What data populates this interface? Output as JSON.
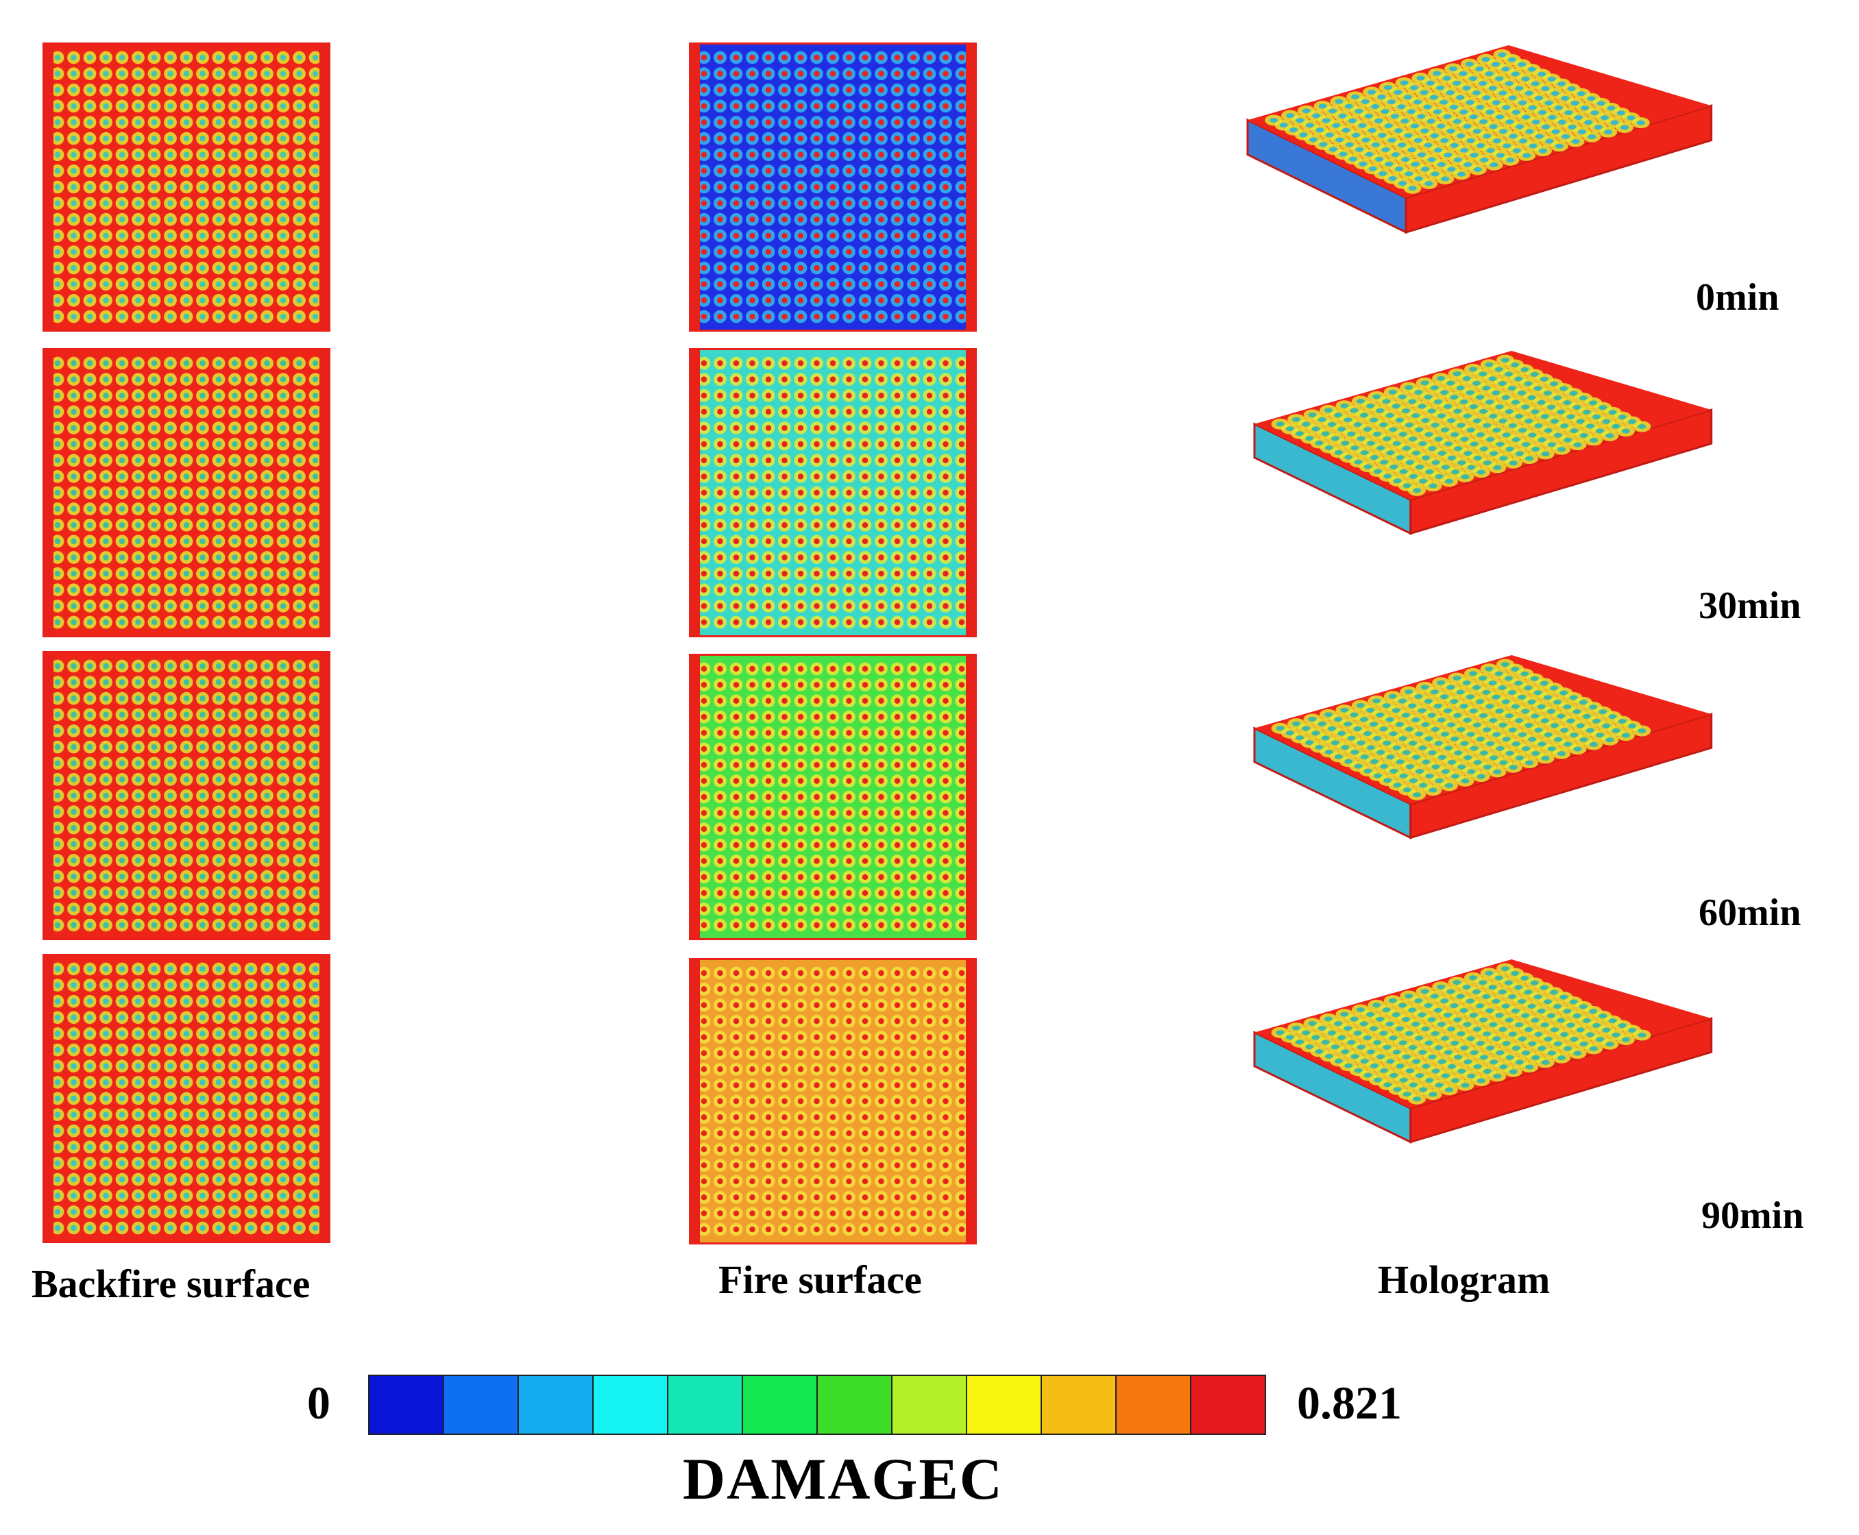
{
  "figure": {
    "columns": [
      {
        "key": "backfire",
        "label": "Backfire surface"
      },
      {
        "key": "fire",
        "label": "Fire surface"
      },
      {
        "key": "hologram",
        "label": "Hologram"
      }
    ],
    "times": [
      "0min",
      "30min",
      "60min",
      "90min"
    ]
  },
  "legend": {
    "min_label": "0",
    "max_label": "0.821",
    "variable": "DAMAGEC",
    "colors": [
      "#0a14d6",
      "#0f6ff2",
      "#14aaf0",
      "#14f2f2",
      "#14e6b4",
      "#14e650",
      "#3cdc28",
      "#b4f028",
      "#f5f50f",
      "#f5be14",
      "#f5780f",
      "#e6191e"
    ]
  },
  "panels": {
    "backfire": [
      {
        "base": "#ee2418",
        "ring": "#e3e636",
        "hole": "#40c8b0",
        "edge": "#e8221a"
      },
      {
        "base": "#ee2418",
        "ring": "#e3e636",
        "hole": "#3cbf9e",
        "edge": "#e8221a"
      },
      {
        "base": "#ee2418",
        "ring": "#d9e63a",
        "hole": "#3cbf9e",
        "edge": "#e8221a"
      },
      {
        "base": "#ee2418",
        "ring": "#d9e63a",
        "hole": "#35c7c0",
        "edge": "#e8221a"
      }
    ],
    "fire": [
      {
        "base": "#1e2ee0",
        "ring": "#36b8f0",
        "hole": "#e8231c",
        "edge": "#e8221a"
      },
      {
        "base": "#3ad8c8",
        "ring": "#e9e838",
        "hole": "#e8231c",
        "edge": "#e8221a"
      },
      {
        "base": "#48e048",
        "ring": "#f0e838",
        "hole": "#e8231c",
        "edge": "#e8221a"
      },
      {
        "base": "#f0a02a",
        "ring": "#f5e040",
        "hole": "#e8231c",
        "edge": "#e8221a"
      }
    ],
    "hologram": [
      {
        "base": "#ee2418",
        "ring": "#e3e636",
        "hole": "#3ab8c8",
        "side": "#3a78d8"
      },
      {
        "base": "#ee2418",
        "ring": "#e3e636",
        "hole": "#3ab8a8",
        "side": "#3ab8d0"
      },
      {
        "base": "#ee2418",
        "ring": "#e3e636",
        "hole": "#3ab8a8",
        "side": "#3ab8d0"
      },
      {
        "base": "#ee2418",
        "ring": "#e3e636",
        "hole": "#3ab8a8",
        "side": "#3ab8d0"
      }
    ]
  }
}
